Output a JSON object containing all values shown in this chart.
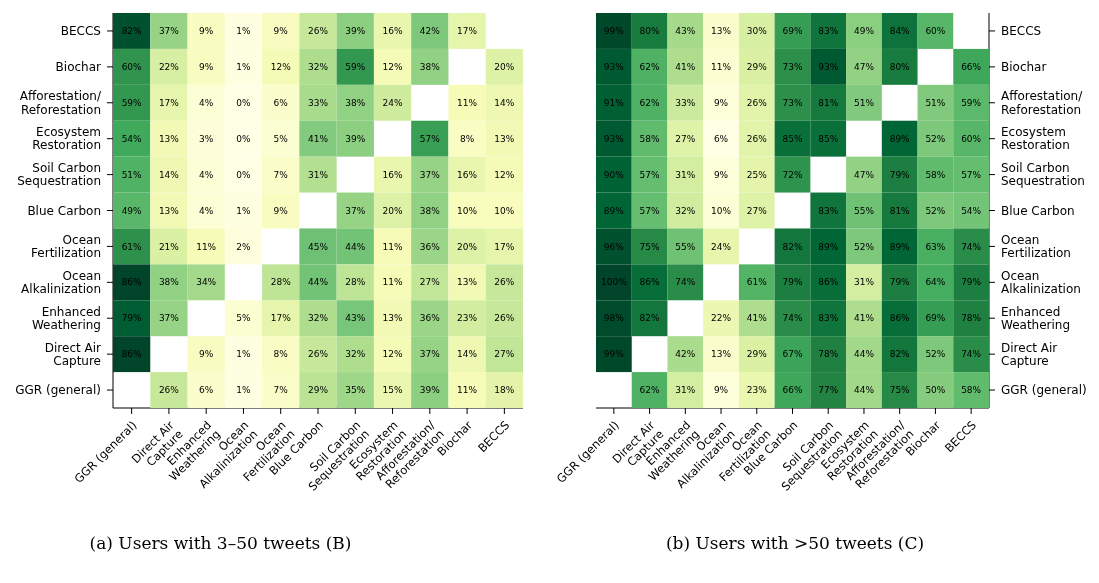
{
  "chart_data": [
    {
      "type": "heatmap",
      "title": "(a) Users with 3–50 tweets (B)",
      "categories": [
        "GGR (general)",
        "Direct Air Capture",
        "Enhanced Weathering",
        "Ocean Alkalinization",
        "Ocean Fertilization",
        "Blue Carbon",
        "Soil Carbon Sequestration",
        "Ecosystem Restoration",
        "Afforestation/Reforestation",
        "Biochar",
        "BECCS"
      ],
      "y_categories": [
        "BECCS",
        "Biochar",
        "Afforestation/Reforestation",
        "Ecosystem Restoration",
        "Soil Carbon Sequestration",
        "Blue Carbon",
        "Ocean Fertilization",
        "Ocean Alkalinization",
        "Enhanced Weathering",
        "Direct Air Capture",
        "GGR (general)"
      ],
      "cells": [
        [
          82,
          37,
          9,
          1,
          9,
          26,
          39,
          16,
          42,
          17,
          null
        ],
        [
          60,
          22,
          9,
          1,
          12,
          32,
          59,
          12,
          38,
          null,
          20
        ],
        [
          59,
          17,
          4,
          0,
          6,
          33,
          38,
          24,
          null,
          11,
          14
        ],
        [
          54,
          13,
          3,
          0,
          5,
          41,
          39,
          null,
          57,
          8,
          13
        ],
        [
          51,
          14,
          4,
          0,
          7,
          31,
          null,
          16,
          37,
          16,
          12
        ],
        [
          49,
          13,
          4,
          1,
          9,
          null,
          37,
          20,
          38,
          10,
          10
        ],
        [
          61,
          21,
          11,
          2,
          null,
          45,
          44,
          11,
          36,
          20,
          17
        ],
        [
          86,
          38,
          34,
          null,
          28,
          44,
          28,
          11,
          27,
          13,
          26
        ],
        [
          79,
          37,
          null,
          5,
          17,
          32,
          43,
          13,
          36,
          23,
          26
        ],
        [
          86,
          null,
          9,
          1,
          8,
          26,
          32,
          12,
          37,
          14,
          27
        ],
        [
          null,
          26,
          6,
          1,
          7,
          29,
          35,
          15,
          39,
          11,
          18
        ]
      ],
      "cell_labels": [
        [
          "82%",
          "37%",
          "9%",
          "1%",
          "9%",
          "26%",
          "39%",
          "16%",
          "42%",
          "17%",
          null
        ],
        [
          "60%",
          "22%",
          "9%",
          "1%",
          "12%",
          "32%",
          "59%",
          "12%",
          "38%",
          null,
          "20%"
        ],
        [
          "59%",
          "17%",
          "4%",
          "0%",
          "6%",
          "33%",
          "38%",
          "24%",
          null,
          "11%",
          "14%"
        ],
        [
          "54%",
          "13%",
          "3%",
          "0%",
          "5%",
          "41%",
          "39%",
          null,
          "57%",
          "8%",
          "13%"
        ],
        [
          "51%",
          "14%",
          "4%",
          "0%",
          "7%",
          "31%",
          null,
          "16%",
          "37%",
          "16%",
          "12%"
        ],
        [
          "49%",
          "13%",
          "4%",
          "1%",
          "9%",
          null,
          "37%",
          "20%",
          "38%",
          "10%",
          "10%"
        ],
        [
          "61%",
          "21%",
          "11%",
          "2%",
          null,
          "45%",
          "44%",
          "11%",
          "36%",
          "20%",
          "17%"
        ],
        [
          "86%",
          "38%",
          "34%",
          null,
          "28%",
          "44%",
          "28%",
          "11%",
          "27%",
          "13%",
          "26%"
        ],
        [
          "79%",
          "37%",
          null,
          "5%",
          "17%",
          "32%",
          "43%",
          "13%",
          "36%",
          "23%",
          "26%"
        ],
        [
          "86%",
          null,
          "9%",
          "1%",
          "8%",
          "26%",
          "32%",
          "12%",
          "37%",
          "14%",
          "27%"
        ],
        [
          null,
          "26%",
          "6%",
          "1%",
          "7%",
          "29%",
          "35%",
          "15%",
          "39%",
          "11%",
          "18%"
        ]
      ]
    },
    {
      "type": "heatmap",
      "title": "(b) Users with >50 tweets (C)",
      "categories": [
        "GGR (general)",
        "Direct Air Capture",
        "Enhanced Weathering",
        "Ocean Alkalinization",
        "Ocean Fertilization",
        "Blue Carbon",
        "Soil Carbon Sequestration",
        "Ecosystem Restoration",
        "Afforestation/Reforestation",
        "Biochar",
        "BECCS"
      ],
      "y_categories": [
        "BECCS",
        "Biochar",
        "Afforestation/Reforestation",
        "Ecosystem Restoration",
        "Soil Carbon Sequestration",
        "Blue Carbon",
        "Ocean Fertilization",
        "Ocean Alkalinization",
        "Enhanced Weathering",
        "Direct Air Capture",
        "GGR (general)"
      ],
      "cells": [
        [
          99,
          80,
          43,
          13,
          30,
          69,
          83,
          49,
          84,
          60,
          null
        ],
        [
          93,
          62,
          41,
          11,
          29,
          73,
          93,
          47,
          80,
          null,
          66
        ],
        [
          91,
          62,
          33,
          9,
          26,
          73,
          81,
          51,
          null,
          51,
          59
        ],
        [
          93,
          58,
          27,
          6,
          26,
          85,
          85,
          null,
          89,
          52,
          60
        ],
        [
          90,
          57,
          31,
          9,
          25,
          72,
          null,
          47,
          79,
          58,
          57
        ],
        [
          89,
          57,
          32,
          10,
          27,
          null,
          83,
          55,
          81,
          52,
          54
        ],
        [
          96,
          75,
          55,
          24,
          null,
          82,
          89,
          52,
          89,
          63,
          74
        ],
        [
          100,
          86,
          74,
          null,
          61,
          79,
          86,
          31,
          79,
          64,
          79
        ],
        [
          98,
          82,
          null,
          22,
          41,
          74,
          83,
          41,
          86,
          69,
          78
        ],
        [
          99,
          null,
          42,
          13,
          29,
          67,
          78,
          44,
          82,
          52,
          74
        ],
        [
          null,
          62,
          31,
          9,
          23,
          66,
          77,
          44,
          75,
          50,
          58
        ]
      ],
      "cell_labels": [
        [
          "99%",
          "80%",
          "43%",
          "13%",
          "30%",
          "69%",
          "83%",
          "49%",
          "84%",
          "60%",
          null
        ],
        [
          "93%",
          "62%",
          "41%",
          "11%",
          "29%",
          "73%",
          "93%",
          "47%",
          "80%",
          null,
          "66%"
        ],
        [
          "91%",
          "62%",
          "33%",
          "9%",
          "26%",
          "73%",
          "81%",
          "51%",
          null,
          "51%",
          "59%"
        ],
        [
          "93%",
          "58%",
          "27%",
          "6%",
          "26%",
          "85%",
          "85%",
          null,
          "89%",
          "52%",
          "60%"
        ],
        [
          "90%",
          "57%",
          "31%",
          "9%",
          "25%",
          "72%",
          null,
          "47%",
          "79%",
          "58%",
          "57%"
        ],
        [
          "89%",
          "57%",
          "32%",
          "10%",
          "27%",
          null,
          "83%",
          "55%",
          "81%",
          "52%",
          "54%"
        ],
        [
          "96%",
          "75%",
          "55%",
          "24%",
          null,
          "82%",
          "89%",
          "52%",
          "89%",
          "63%",
          "74%"
        ],
        [
          "100%",
          "86%",
          "74%",
          null,
          "61%",
          "79%",
          "86%",
          "31%",
          "79%",
          "64%",
          "79%"
        ],
        [
          "98%",
          "82%",
          null,
          "22%",
          "41%",
          "74%",
          "83%",
          "41%",
          "86%",
          "69%",
          "78%"
        ],
        [
          "99%",
          null,
          "42%",
          "13%",
          "29%",
          "67%",
          "78%",
          "44%",
          "82%",
          "52%",
          "74%"
        ],
        [
          null,
          "62%",
          "31%",
          "9%",
          "23%",
          "66%",
          "77%",
          "44%",
          "75%",
          "50%",
          "58%"
        ]
      ]
    }
  ]
}
